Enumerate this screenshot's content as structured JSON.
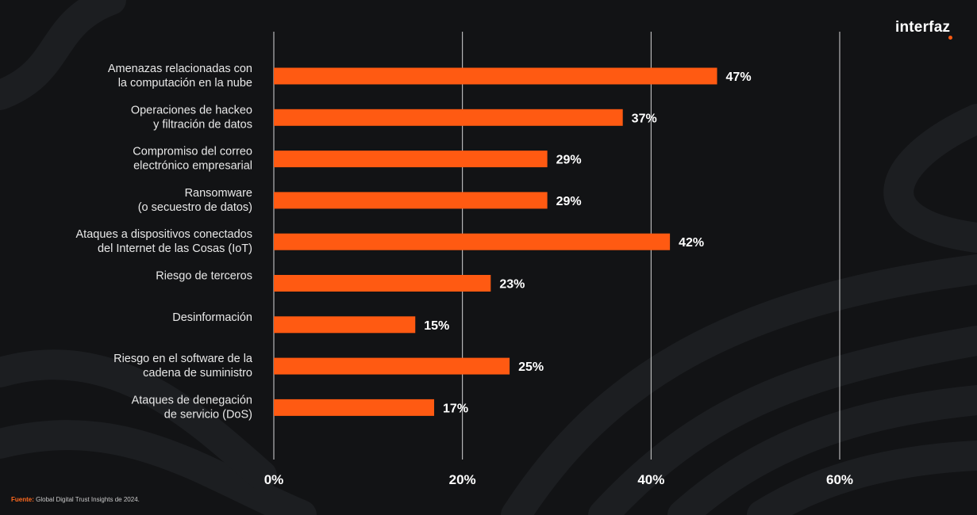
{
  "brand": {
    "name": "interfaz",
    "accent": "#ff5a12"
  },
  "source": {
    "label": "Fuente:",
    "text": "Global Digital Trust Insights de 2024."
  },
  "chart_data": {
    "type": "bar",
    "orientation": "horizontal",
    "title": "",
    "xlabel": "",
    "ylabel": "",
    "xlim": [
      0,
      60
    ],
    "ticks": [
      0,
      20,
      40,
      60
    ],
    "tick_labels": [
      "0%",
      "20%",
      "40%",
      "60%"
    ],
    "grid": true,
    "bar_color": "#ff5a12",
    "categories": [
      [
        "Amenazas relacionadas con",
        "la computación en la nube"
      ],
      [
        "Operaciones de hackeo",
        "y filtración de datos"
      ],
      [
        "Compromiso del correo",
        "electrónico empresarial"
      ],
      [
        "Ransomware",
        "(o secuestro de datos)"
      ],
      [
        "Ataques a dispositivos conectados",
        "del Internet de las Cosas (IoT)"
      ],
      [
        "Riesgo de terceros"
      ],
      [
        "Desinformación"
      ],
      [
        "Riesgo en el software de la",
        "cadena de suministro"
      ],
      [
        "Ataques de denegación",
        "de servicio (DoS)"
      ]
    ],
    "values": [
      47,
      37,
      29,
      29,
      42,
      23,
      15,
      25,
      17
    ],
    "value_labels": [
      "47%",
      "37%",
      "29%",
      "29%",
      "42%",
      "23%",
      "15%",
      "25%",
      "17%"
    ]
  }
}
